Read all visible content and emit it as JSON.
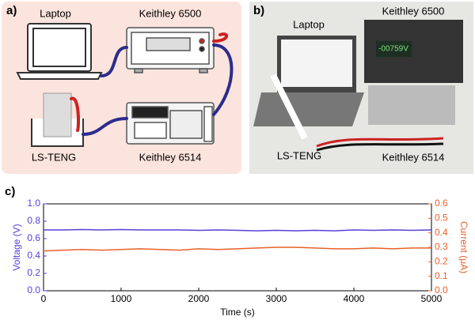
{
  "panel_a": {
    "label": "a)",
    "laptop": "Laptop",
    "meter_1": "Keithley 6500",
    "device": "LS-TENG",
    "meter_2": "Keithley 6514"
  },
  "panel_b": {
    "label": "b)",
    "laptop": "Laptop",
    "meter_1": "Keithley 6500",
    "display": "-00759V",
    "device": "LS-TENG",
    "meter_2": "Keithley 6514"
  },
  "chart_data": {
    "type": "line",
    "label": "c)",
    "xlabel": "Time (s)",
    "ylabel": "Voltage (V)",
    "y2label": "Current (μA)",
    "x": [
      0,
      250,
      500,
      750,
      1000,
      1250,
      1500,
      1750,
      2000,
      2250,
      2500,
      2750,
      3000,
      3250,
      3500,
      3750,
      4000,
      4250,
      4500,
      4750,
      5000
    ],
    "series": [
      {
        "color": "#5b3fd8",
        "values": [
          0.7,
          0.7,
          0.705,
          0.7,
          0.705,
          0.7,
          0.7,
          0.7,
          0.695,
          0.7,
          0.695,
          0.69,
          0.695,
          0.69,
          0.695,
          0.69,
          0.7,
          0.695,
          0.7,
          0.695,
          0.7
        ]
      },
      {
        "color": "#e8602a",
        "axis": "y2",
        "values": [
          0.275,
          0.28,
          0.285,
          0.28,
          0.285,
          0.29,
          0.285,
          0.28,
          0.29,
          0.285,
          0.29,
          0.295,
          0.3,
          0.3,
          0.295,
          0.29,
          0.29,
          0.295,
          0.29,
          0.295,
          0.295
        ]
      }
    ],
    "xlim": [
      0,
      5000
    ],
    "xticks": [
      0,
      1000,
      2000,
      3000,
      4000,
      5000
    ],
    "ylim": [
      0,
      1
    ],
    "yticks": [
      {
        "value": 0,
        "label": "0.0"
      },
      0.2,
      0.4,
      0.6,
      0.8,
      {
        "value": 1,
        "label": "1.0"
      }
    ],
    "y2lim": [
      0,
      0.6
    ],
    "y2ticks": [
      {
        "value": 0,
        "label": "0.0"
      },
      0.1,
      0.2,
      0.3,
      0.4,
      0.5,
      0.6
    ]
  }
}
